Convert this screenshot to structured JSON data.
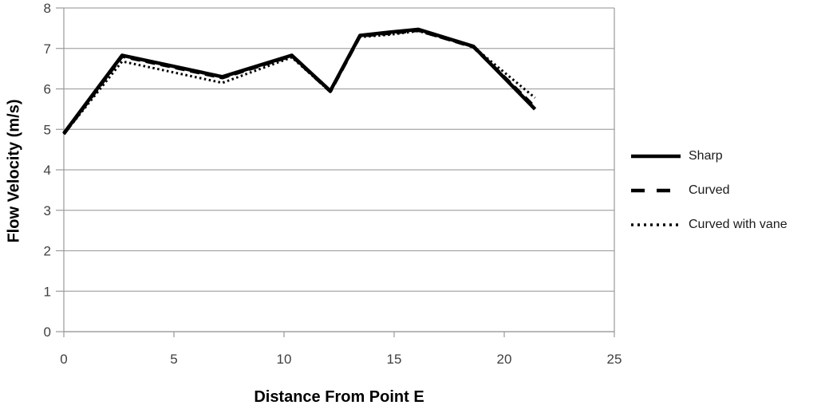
{
  "chart_data": {
    "type": "line",
    "title": "",
    "xlabel": "Distance From Point E",
    "ylabel": "Flow Velocity (m/s)",
    "xlim": [
      0,
      25
    ],
    "ylim": [
      0,
      8
    ],
    "x_ticks": [
      0,
      5,
      10,
      15,
      20,
      25
    ],
    "y_ticks": [
      0,
      1,
      2,
      3,
      4,
      5,
      6,
      7,
      8
    ],
    "grid": "horizontal",
    "legend_position": "right-outside",
    "x": [
      0,
      2.65,
      7.2,
      10.35,
      12.1,
      13.45,
      14.8,
      16.1,
      18.6,
      21.4
    ],
    "series": [
      {
        "name": "Sharp",
        "style": "solid",
        "color": "#000000",
        "values": [
          4.9,
          6.83,
          6.3,
          6.83,
          5.95,
          7.32,
          7.4,
          7.47,
          7.05,
          5.5
        ]
      },
      {
        "name": "Curved",
        "style": "dashed",
        "color": "#000000",
        "values": [
          4.89,
          6.81,
          6.28,
          6.82,
          5.94,
          7.31,
          7.38,
          7.45,
          7.04,
          5.54
        ]
      },
      {
        "name": "Curved with vane",
        "style": "dotted",
        "color": "#000000",
        "values": [
          4.88,
          6.68,
          6.15,
          6.78,
          5.93,
          7.28,
          7.34,
          7.43,
          7.04,
          5.78
        ]
      }
    ],
    "colors": {
      "series": "#000000",
      "gridline": "#a6a6a6",
      "axis_line": "#9a9a9a",
      "tick_label": "#3f3f3f",
      "axis_title": "#000000",
      "legend_text": "#1a1a1a",
      "background": "#ffffff"
    }
  }
}
